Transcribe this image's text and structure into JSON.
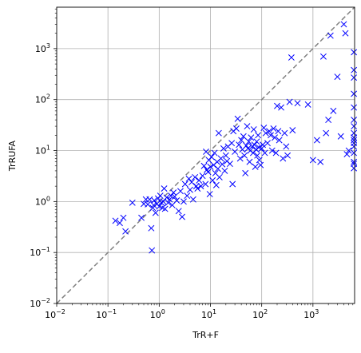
{
  "chart_data": {
    "type": "scatter",
    "title": "",
    "xlabel": "TrR+F",
    "ylabel": "TrRUFA",
    "x_scale": "log",
    "y_scale": "log",
    "xlim": [
      0.01,
      6500
    ],
    "ylim": [
      0.01,
      6500
    ],
    "grid": true,
    "x_tick_labels": [
      {
        "value": 0.01,
        "base": "10",
        "exp": "−2"
      },
      {
        "value": 0.1,
        "base": "10",
        "exp": "−1"
      },
      {
        "value": 1,
        "base": "10",
        "exp": "0"
      },
      {
        "value": 10,
        "base": "10",
        "exp": "1"
      },
      {
        "value": 100,
        "base": "10",
        "exp": "2"
      },
      {
        "value": 1000,
        "base": "10",
        "exp": "3"
      }
    ],
    "y_tick_labels": [
      {
        "value": 0.01,
        "base": "10",
        "exp": "−2"
      },
      {
        "value": 0.1,
        "base": "10",
        "exp": "−1"
      },
      {
        "value": 1,
        "base": "10",
        "exp": "0"
      },
      {
        "value": 10,
        "base": "10",
        "exp": "1"
      },
      {
        "value": 100,
        "base": "10",
        "exp": "2"
      },
      {
        "value": 1000,
        "base": "10",
        "exp": "3"
      }
    ],
    "reference_line": {
      "style": "dashed",
      "color": "#808080",
      "slope": 1
    },
    "marker": {
      "shape": "x",
      "color": "#0000ff"
    },
    "points": [
      [
        0.14,
        0.42
      ],
      [
        0.17,
        0.38
      ],
      [
        0.2,
        0.48
      ],
      [
        0.22,
        0.26
      ],
      [
        0.3,
        0.95
      ],
      [
        0.45,
        0.48
      ],
      [
        0.5,
        0.9
      ],
      [
        0.55,
        1.1
      ],
      [
        0.6,
        0.88
      ],
      [
        0.65,
        1.1
      ],
      [
        0.7,
        0.3
      ],
      [
        0.72,
        0.11
      ],
      [
        0.75,
        0.75
      ],
      [
        0.78,
        0.85
      ],
      [
        0.8,
        1.05
      ],
      [
        0.85,
        0.6
      ],
      [
        0.9,
        0.9
      ],
      [
        0.95,
        1.15
      ],
      [
        1.0,
        0.8
      ],
      [
        1.05,
        1.3
      ],
      [
        1.1,
        0.95
      ],
      [
        1.15,
        0.75
      ],
      [
        1.2,
        1.0
      ],
      [
        1.25,
        1.8
      ],
      [
        1.3,
        0.72
      ],
      [
        1.4,
        1.2
      ],
      [
        1.5,
        0.95
      ],
      [
        1.6,
        1.1
      ],
      [
        1.7,
        1.3
      ],
      [
        1.8,
        0.85
      ],
      [
        1.9,
        1.5
      ],
      [
        2.0,
        1.25
      ],
      [
        2.2,
        1.05
      ],
      [
        2.4,
        0.65
      ],
      [
        2.6,
        1.6
      ],
      [
        2.8,
        0.5
      ],
      [
        3.0,
        1.0
      ],
      [
        3.2,
        2.2
      ],
      [
        3.5,
        1.3
      ],
      [
        3.8,
        2.8
      ],
      [
        4.0,
        1.7
      ],
      [
        4.3,
        2.4
      ],
      [
        4.6,
        1.1
      ],
      [
        5.0,
        3.0
      ],
      [
        5.3,
        2.0
      ],
      [
        5.6,
        1.8
      ],
      [
        6.0,
        2.6
      ],
      [
        6.5,
        2.0
      ],
      [
        7.0,
        3.2
      ],
      [
        7.5,
        5.0
      ],
      [
        8.0,
        2.2
      ],
      [
        8.2,
        9.5
      ],
      [
        8.5,
        4.2
      ],
      [
        9.0,
        3.8
      ],
      [
        9.3,
        6.5
      ],
      [
        9.7,
        1.4
      ],
      [
        10.0,
        4.8
      ],
      [
        10.5,
        7.5
      ],
      [
        11.0,
        2.6
      ],
      [
        11.5,
        5.2
      ],
      [
        12.0,
        9.0
      ],
      [
        12.5,
        3.6
      ],
      [
        13.0,
        2.1
      ],
      [
        13.5,
        6.0
      ],
      [
        14.0,
        4.4
      ],
      [
        14.5,
        22.0
      ],
      [
        15.0,
        3.0
      ],
      [
        16.0,
        7.0
      ],
      [
        17.0,
        5.4
      ],
      [
        18.0,
        11.0
      ],
      [
        19.0,
        4.0
      ],
      [
        20.0,
        8.0
      ],
      [
        21.0,
        6.2
      ],
      [
        22.0,
        12.0
      ],
      [
        24.0,
        5.5
      ],
      [
        26.0,
        14.0
      ],
      [
        27.0,
        2.2
      ],
      [
        28.0,
        24.0
      ],
      [
        30.0,
        9.5
      ],
      [
        32.0,
        27.0
      ],
      [
        34.0,
        42.0
      ],
      [
        36.0,
        13.0
      ],
      [
        38.0,
        7.0
      ],
      [
        40.0,
        16.0
      ],
      [
        42.0,
        10.5
      ],
      [
        44.0,
        19.0
      ],
      [
        46.0,
        8.0
      ],
      [
        48.0,
        3.6
      ],
      [
        50.0,
        12.5
      ],
      [
        52.0,
        30.0
      ],
      [
        54.0,
        11.0
      ],
      [
        56.0,
        15.0
      ],
      [
        58.0,
        6.0
      ],
      [
        60.0,
        10.0
      ],
      [
        62.0,
        18.0
      ],
      [
        65.0,
        12.0
      ],
      [
        68.0,
        9.0
      ],
      [
        70.0,
        26.0
      ],
      [
        72.0,
        13.0
      ],
      [
        75.0,
        4.8
      ],
      [
        78.0,
        10.5
      ],
      [
        80.0,
        15.0
      ],
      [
        82.0,
        8.0
      ],
      [
        85.0,
        20.0
      ],
      [
        88.0,
        11.5
      ],
      [
        90.0,
        6.5
      ],
      [
        95.0,
        5.2
      ],
      [
        100.0,
        11.0
      ],
      [
        105.0,
        13.0
      ],
      [
        110.0,
        28.0
      ],
      [
        115.0,
        9.0
      ],
      [
        120.0,
        22.0
      ],
      [
        130.0,
        14.0
      ],
      [
        140.0,
        24.0
      ],
      [
        150.0,
        20.0
      ],
      [
        160.0,
        10.0
      ],
      [
        170.0,
        27.0
      ],
      [
        180.0,
        18.0
      ],
      [
        190.0,
        9.0
      ],
      [
        200.0,
        75.0
      ],
      [
        210.0,
        24.0
      ],
      [
        220.0,
        16.0
      ],
      [
        240.0,
        70.0
      ],
      [
        260.0,
        7.0
      ],
      [
        280.0,
        22.0
      ],
      [
        300.0,
        12.0
      ],
      [
        320.0,
        8.0
      ],
      [
        350.0,
        90.0
      ],
      [
        380.0,
        670.0
      ],
      [
        400.0,
        25.0
      ],
      [
        500.0,
        85.0
      ],
      [
        800.0,
        80.0
      ],
      [
        1000.0,
        6.5
      ],
      [
        1200.0,
        16.0
      ],
      [
        1400.0,
        6.0
      ],
      [
        1600.0,
        700.0
      ],
      [
        1800.0,
        22.0
      ],
      [
        2000.0,
        40.0
      ],
      [
        2200.0,
        1800.0
      ],
      [
        2500.0,
        60.0
      ],
      [
        3000.0,
        280.0
      ],
      [
        3500.0,
        19.0
      ],
      [
        4000.0,
        3000.0
      ],
      [
        4300.0,
        2000.0
      ],
      [
        4600.0,
        8.5
      ],
      [
        5000.0,
        10.0
      ],
      [
        6300.0,
        850.0
      ],
      [
        6300.0,
        380.0
      ],
      [
        6300.0,
        270.0
      ],
      [
        6300.0,
        130.0
      ],
      [
        6300.0,
        70.0
      ],
      [
        6300.0,
        40.0
      ],
      [
        6300.0,
        30.0
      ],
      [
        6300.0,
        22.0
      ],
      [
        6300.0,
        18.0
      ],
      [
        6300.0,
        16.0
      ],
      [
        6300.0,
        14.0
      ],
      [
        6300.0,
        12.0
      ],
      [
        6300.0,
        9.0
      ],
      [
        6300.0,
        6.0
      ],
      [
        6300.0,
        5.5
      ],
      [
        6300.0,
        4.5
      ]
    ]
  }
}
